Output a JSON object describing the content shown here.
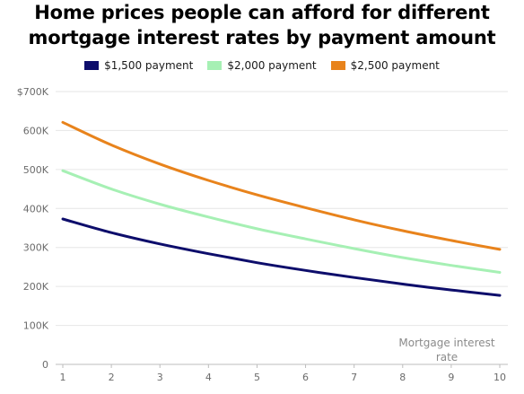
{
  "chart_data": {
    "type": "line",
    "title_lines": [
      "Home prices people can afford for different",
      "mortgage interest rates by payment amount"
    ],
    "xlabel_lines": [
      "Mortgage interest",
      "rate"
    ],
    "ylabel": "",
    "x": [
      1,
      2,
      3,
      4,
      5,
      6,
      7,
      8,
      9,
      10
    ],
    "xlim": [
      1,
      10
    ],
    "ylim": [
      0,
      700000
    ],
    "y_ticks": [
      0,
      100000,
      200000,
      300000,
      400000,
      500000,
      600000,
      700000
    ],
    "y_tick_labels": [
      "0",
      "100K",
      "200K",
      "300K",
      "400K",
      "500K",
      "600K",
      "$700K"
    ],
    "x_tick_labels": [
      "1",
      "2",
      "3",
      "4",
      "5",
      "6",
      "7",
      "8",
      "9",
      "10"
    ],
    "grid": "horizontal",
    "legend_position": "top-center",
    "series": [
      {
        "name": "$1,500 payment",
        "color": "#0d0d6b",
        "values": [
          373000,
          338000,
          309000,
          284000,
          261000,
          241000,
          223000,
          206000,
          191000,
          177000
        ]
      },
      {
        "name": "$2,000 payment",
        "color": "#a6f0b4",
        "values": [
          497000,
          450000,
          411000,
          378000,
          348000,
          322000,
          297000,
          274000,
          254000,
          236000
        ]
      },
      {
        "name": "$2,500 payment",
        "color": "#e8831c",
        "values": [
          621000,
          563000,
          514000,
          472000,
          435000,
          402000,
          371000,
          343000,
          318000,
          295000
        ]
      }
    ]
  }
}
